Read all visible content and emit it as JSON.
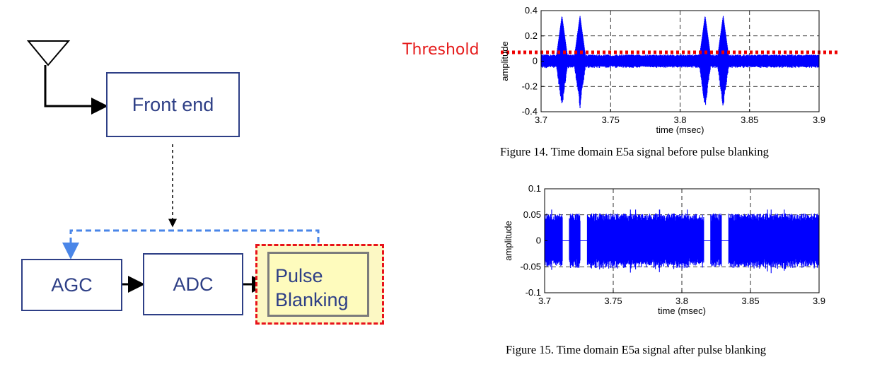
{
  "diagram": {
    "blocks": {
      "front_end": "Front end",
      "agc": "AGC",
      "adc": "ADC",
      "pulse_blanking_line1": "Pulse",
      "pulse_blanking_line2": "Blanking"
    },
    "colors": {
      "block_border": "#2e3f86",
      "feedback_line": "#4a86e8",
      "highlight_border": "#e8131b",
      "pulse_fill": "#fefbbd"
    }
  },
  "threshold_label": "Threshold",
  "chart_data": [
    {
      "type": "line",
      "caption": "Figure 14. Time domain E5a signal before pulse blanking",
      "xlabel": "time (msec)",
      "ylabel": "amplitude",
      "xlim": [
        3.7,
        3.9
      ],
      "ylim": [
        -0.4,
        0.4
      ],
      "x_ticks": [
        "3.7",
        "3.75",
        "3.8",
        "3.85",
        "3.9"
      ],
      "y_ticks": [
        "0.4",
        "0.2",
        "0",
        "-0.2",
        "-0.4"
      ],
      "grid": true,
      "threshold": 0.07,
      "noise_level": 0.05,
      "pulse_centers": [
        3.715,
        3.728,
        3.818,
        3.831
      ],
      "pulse_peak": 0.36,
      "series_color": "#0000ff",
      "threshold_color": "#ee0000"
    },
    {
      "type": "line",
      "caption": "Figure 15. Time domain E5a signal after pulse blanking",
      "xlabel": "time (msec)",
      "ylabel": "amplitude",
      "xlim": [
        3.7,
        3.9
      ],
      "ylim": [
        -0.1,
        0.1
      ],
      "x_ticks": [
        "3.7",
        "3.75",
        "3.8",
        "3.85",
        "3.9"
      ],
      "y_ticks": [
        "0.1",
        "0.05",
        "0",
        "-0.05",
        "-0.1"
      ],
      "grid": true,
      "noise_level": 0.05,
      "blanked_intervals": [
        [
          3.713,
          3.718
        ],
        [
          3.726,
          3.731
        ],
        [
          3.816,
          3.821
        ],
        [
          3.829,
          3.834
        ]
      ],
      "series_color": "#0000ff"
    }
  ]
}
